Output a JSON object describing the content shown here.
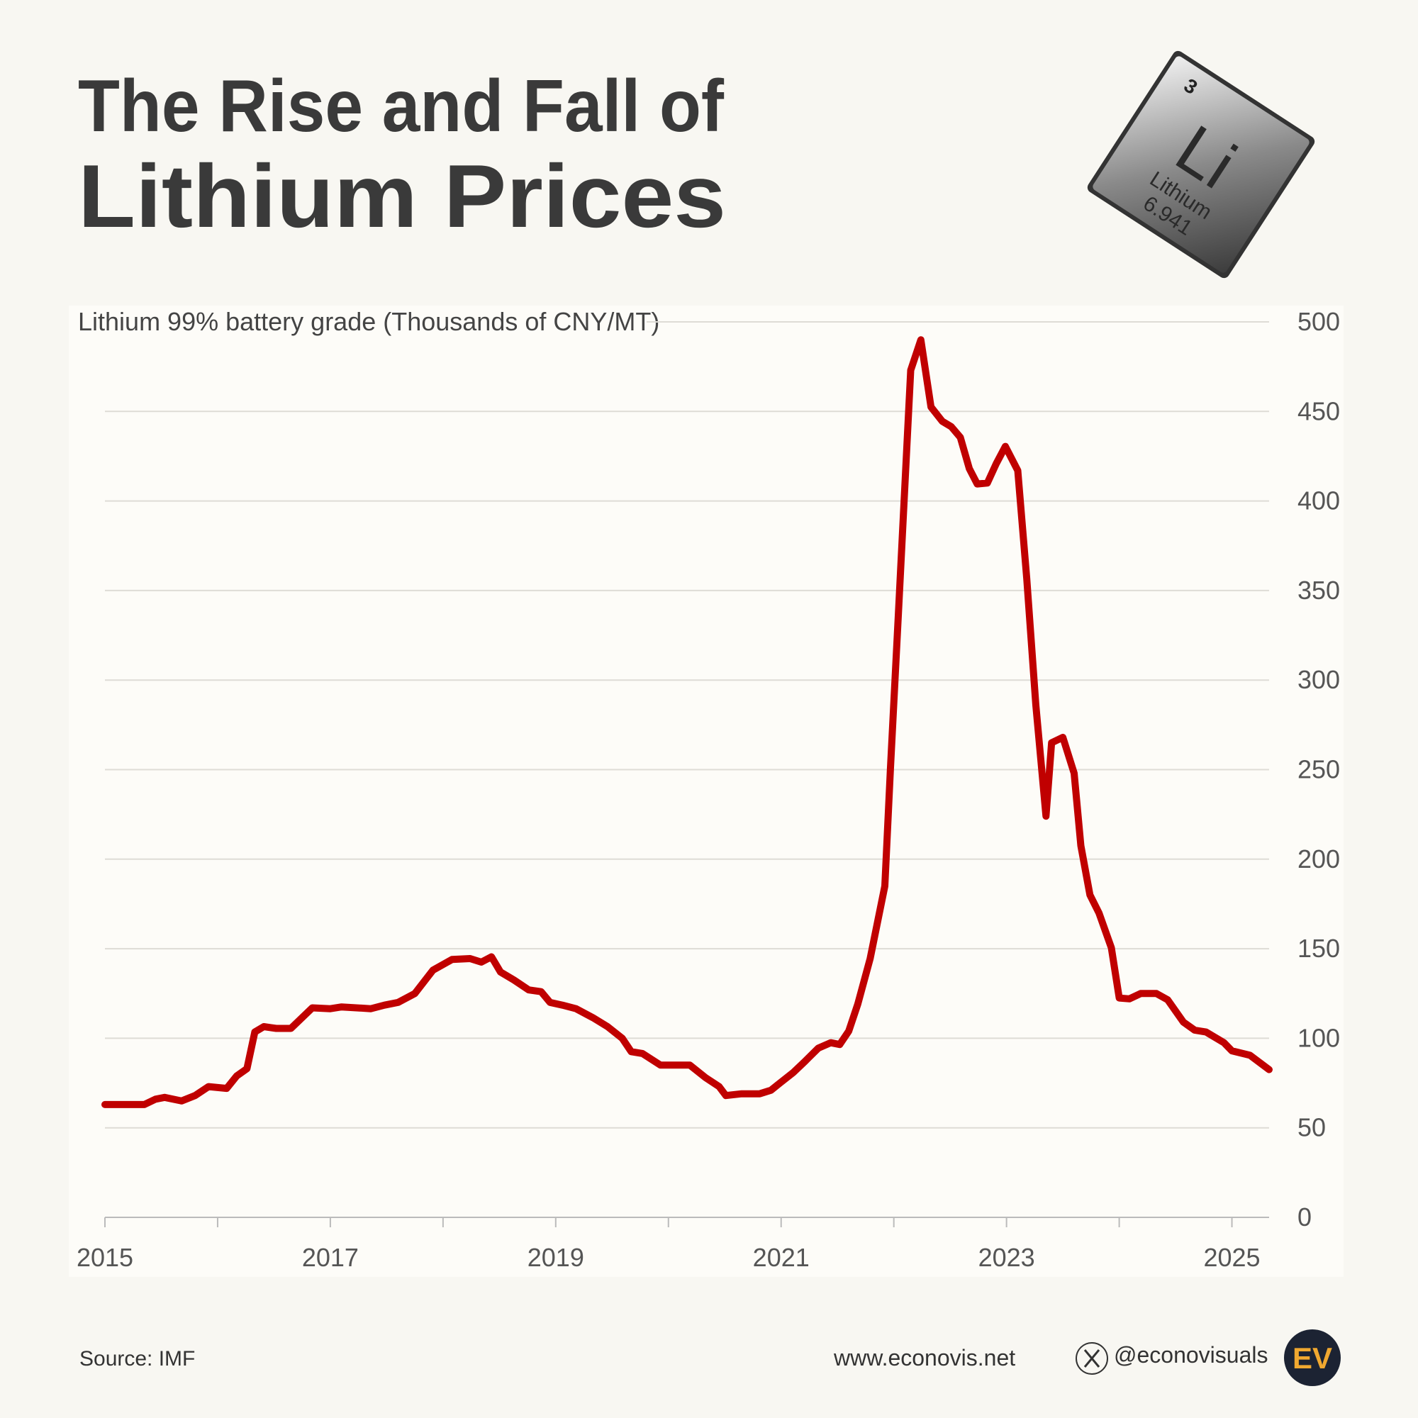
{
  "chart_data": {
    "type": "line",
    "title_lines": [
      "The Rise and Fall of",
      "Lithium Prices"
    ],
    "subtitle": "Lithium 99% battery grade (Thousands of CNY/MT)",
    "x": [
      2015.0,
      2015.35,
      2015.45,
      2015.53,
      2015.68,
      2015.8,
      2015.92,
      2016.08,
      2016.17,
      2016.26,
      2016.33,
      2016.41,
      2016.52,
      2016.65,
      2016.84,
      2017.0,
      2017.1,
      2017.36,
      2017.48,
      2017.6,
      2017.75,
      2017.91,
      2018.08,
      2018.24,
      2018.34,
      2018.43,
      2018.51,
      2018.63,
      2018.76,
      2018.87,
      2018.95,
      2019.06,
      2019.18,
      2019.33,
      2019.46,
      2019.59,
      2019.67,
      2019.77,
      2019.93,
      2020.05,
      2020.19,
      2020.33,
      2020.45,
      2020.51,
      2020.65,
      2020.81,
      2020.91,
      2020.99,
      2021.11,
      2021.21,
      2021.33,
      2021.44,
      2021.52,
      2021.6,
      2021.68,
      2021.79,
      2021.92,
      2021.97,
      2022.04,
      2022.15,
      2022.24,
      2022.33,
      2022.43,
      2022.51,
      2022.59,
      2022.67,
      2022.74,
      2022.83,
      2022.91,
      2022.99,
      2023.1,
      2023.18,
      2023.26,
      2023.35,
      2023.4,
      2023.5,
      2023.6,
      2023.66,
      2023.74,
      2023.82,
      2023.93,
      2024.0,
      2024.09,
      2024.19,
      2024.33,
      2024.43,
      2024.57,
      2024.67,
      2024.77,
      2024.93,
      2025.0,
      2025.16,
      2025.33
    ],
    "values": [
      63,
      63,
      66,
      67,
      65,
      68,
      73,
      72,
      79,
      83,
      103.5,
      106.5,
      105.5,
      105.5,
      117,
      116.5,
      117.5,
      116.5,
      118.5,
      120,
      125,
      138,
      144,
      144.5,
      142.5,
      145.5,
      137,
      132.5,
      127,
      126,
      120,
      118.5,
      116.5,
      111.5,
      106.5,
      100,
      92.5,
      91.5,
      85,
      85,
      85,
      78,
      73,
      68,
      69,
      69,
      71,
      75,
      81,
      87,
      94.5,
      97.5,
      96.5,
      104,
      119,
      144.5,
      185,
      250.5,
      336,
      473,
      490,
      452.5,
      444.5,
      441.5,
      435.5,
      418,
      409.5,
      410,
      421,
      430.5,
      417,
      356.5,
      286,
      224,
      265,
      268,
      248,
      207.5,
      180,
      170,
      150.5,
      122.5,
      122,
      125,
      125,
      121.5,
      109,
      104.5,
      103.5,
      97.5,
      93,
      90.5,
      82.5
    ],
    "color": "#c00000",
    "xlim": [
      2015,
      2025.33
    ],
    "xticks": [
      2015,
      2017,
      2019,
      2021,
      2023,
      2025
    ],
    "xminor_ticks": [
      2016,
      2018,
      2020,
      2022,
      2024
    ],
    "ylim": [
      0,
      500
    ],
    "yticks": [
      0,
      50,
      100,
      150,
      200,
      250,
      300,
      350,
      400,
      450,
      500
    ],
    "grid": true
  },
  "element_tile": {
    "number": "3",
    "symbol": "Li",
    "name": "Lithium",
    "mass": "6.941"
  },
  "footer": {
    "source": "Source: IMF",
    "website": "www.econovis.net",
    "handle": "@econovisuals",
    "logo": "EV"
  }
}
